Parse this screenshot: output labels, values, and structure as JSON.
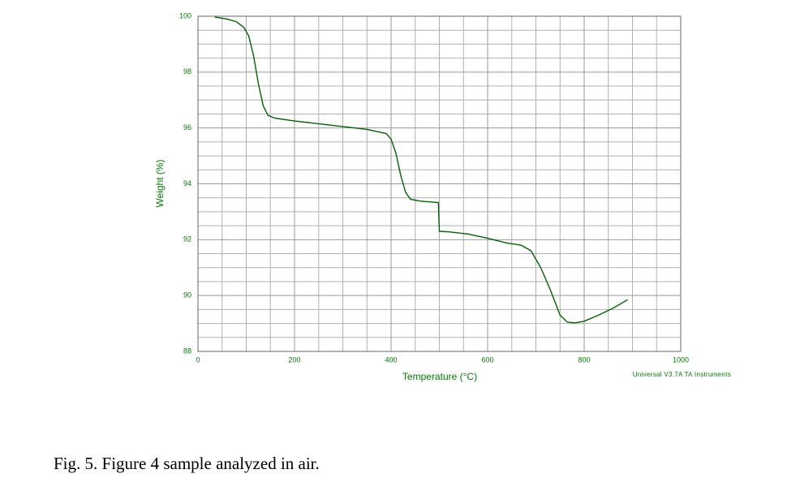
{
  "chart_data": {
    "type": "line",
    "title": "Fig. 5.  Figure 4 sample analyzed in air.",
    "x_label": "Temperature (°C)",
    "y_label": "Weight (%)",
    "annotation": "Universal V3.7A TA Instruments",
    "x": [
      35,
      60,
      80,
      95,
      105,
      115,
      125,
      135,
      145,
      160,
      200,
      300,
      350,
      390,
      400,
      410,
      420,
      430,
      440,
      460,
      498,
      500,
      520,
      560,
      600,
      640,
      670,
      690,
      710,
      730,
      750,
      765,
      780,
      800,
      830,
      860,
      890
    ],
    "series": [
      {
        "name": "Weight",
        "color": "#006400",
        "values": [
          99.97,
          99.9,
          99.8,
          99.6,
          99.3,
          98.6,
          97.6,
          96.8,
          96.45,
          96.35,
          96.25,
          96.05,
          95.95,
          95.8,
          95.6,
          95.1,
          94.3,
          93.7,
          93.45,
          93.38,
          93.33,
          92.3,
          92.28,
          92.2,
          92.05,
          91.88,
          91.8,
          91.6,
          91.0,
          90.2,
          89.3,
          89.05,
          89.02,
          89.08,
          89.3,
          89.55,
          89.85
        ]
      }
    ],
    "xlim": [
      0,
      1000
    ],
    "xticks": [
      0,
      200,
      400,
      600,
      800,
      1000
    ],
    "ylim": [
      88,
      100
    ],
    "yticks": [
      88,
      90,
      92,
      94,
      96,
      98,
      100
    ],
    "grid": true
  }
}
